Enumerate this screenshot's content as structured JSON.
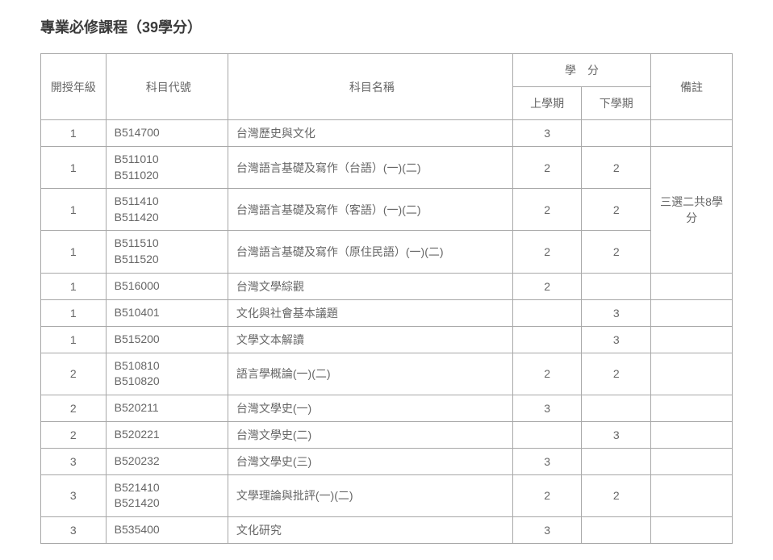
{
  "title": "專業必修課程（39學分）",
  "headers": {
    "year": "開授年級",
    "code": "科目代號",
    "name": "科目名稱",
    "credit_group": "學　分",
    "sem1": "上學期",
    "sem2": "下學期",
    "note": "備註"
  },
  "note_merged": "三選二共8學分",
  "rows": [
    {
      "year": "1",
      "code": "B514700",
      "name": "台灣歷史與文化",
      "sem1": "3",
      "sem2": "",
      "note": ""
    },
    {
      "year": "1",
      "code": "B511010\nB511020",
      "name": "台灣語言基礎及寫作（台語）(一)(二)",
      "sem1": "2",
      "sem2": "2",
      "note_merge_start": true
    },
    {
      "year": "1",
      "code": "B511410\nB511420",
      "name": "台灣語言基礎及寫作（客語）(一)(二)",
      "sem1": "2",
      "sem2": "2",
      "note_merge_middle": true
    },
    {
      "year": "1",
      "code": "B511510\nB511520",
      "name": "台灣語言基礎及寫作（原住民語）(一)(二)",
      "sem1": "2",
      "sem2": "2",
      "note_merge_end": true
    },
    {
      "year": "1",
      "code": "B516000",
      "name": "台灣文學綜觀",
      "sem1": "2",
      "sem2": "",
      "note": ""
    },
    {
      "year": "1",
      "code": "B510401",
      "name": "文化與社會基本議題",
      "sem1": "",
      "sem2": "3",
      "note": ""
    },
    {
      "year": "1",
      "code": "B515200",
      "name": "文學文本解讀",
      "sem1": "",
      "sem2": "3",
      "note": ""
    },
    {
      "year": "2",
      "code": "B510810\nB510820",
      "name": "語言學概論(一)(二)",
      "sem1": "2",
      "sem2": "2",
      "note": ""
    },
    {
      "year": "2",
      "code": "B520211",
      "name": "台灣文學史(一)",
      "sem1": "3",
      "sem2": "",
      "note": ""
    },
    {
      "year": "2",
      "code": "B520221",
      "name": "台灣文學史(二)",
      "sem1": "",
      "sem2": "3",
      "note": ""
    },
    {
      "year": "3",
      "code": "B520232",
      "name": "台灣文學史(三)",
      "sem1": "3",
      "sem2": "",
      "note": ""
    },
    {
      "year": "3",
      "code": "B521410\nB521420",
      "name": "文學理論與批評(一)(二)",
      "sem1": "2",
      "sem2": "2",
      "note": ""
    },
    {
      "year": "3",
      "code": "B535400",
      "name": "文化研究",
      "sem1": "3",
      "sem2": "",
      "note": ""
    }
  ],
  "colors": {
    "border": "#a8a8a8",
    "text": "#666666",
    "title": "#3a3a3a",
    "background": "#ffffff"
  }
}
